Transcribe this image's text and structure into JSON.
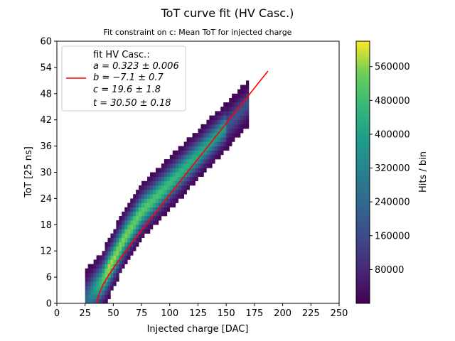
{
  "chart_data": {
    "type": "heatmap",
    "title": "ToT curve fit (HV Casc.)",
    "subtitle": "Fit constraint on c: Mean ToT for injected charge",
    "xlabel": "Injected charge [DAC]",
    "ylabel": "ToT [25 ns]",
    "xlim": [
      0,
      250
    ],
    "ylim": [
      0,
      60
    ],
    "xticks": [
      "0",
      "25",
      "50",
      "75",
      "100",
      "125",
      "150",
      "175",
      "200",
      "225",
      "250"
    ],
    "yticks": [
      "0",
      "6",
      "12",
      "18",
      "24",
      "30",
      "36",
      "42",
      "48",
      "54",
      "60"
    ],
    "grid": false,
    "colorbar": {
      "label": "Hits / bin",
      "colormap": "viridis",
      "range": [
        0,
        620000
      ],
      "ticks": [
        "80000",
        "160000",
        "240000",
        "320000",
        "400000",
        "480000",
        "560000"
      ]
    },
    "histogram": {
      "x_range": [
        25,
        170
      ],
      "band_center": [
        {
          "x": 25,
          "y": 0.5
        },
        {
          "x": 40,
          "y": 5
        },
        {
          "x": 50,
          "y": 10
        },
        {
          "x": 60,
          "y": 15
        },
        {
          "x": 75,
          "y": 21
        },
        {
          "x": 100,
          "y": 27.5
        },
        {
          "x": 125,
          "y": 34
        },
        {
          "x": 150,
          "y": 40.5
        },
        {
          "x": 170,
          "y": 46
        }
      ],
      "peak_hits": 600000
    },
    "fit": {
      "name": "fit HV Casc.:",
      "color": "#ff0000",
      "a": 0.323,
      "b": -7.1,
      "c": 19.6,
      "t": 30.5,
      "x_range": [
        35,
        187
      ]
    },
    "legend": {
      "placement": "upper-left",
      "entries": [
        "fit HV Casc.:",
        "a = 0.323 ± 0.006",
        "b = −7.1 ± 0.7",
        "c = 19.6 ± 1.8",
        "t = 30.50 ± 0.18"
      ]
    }
  }
}
